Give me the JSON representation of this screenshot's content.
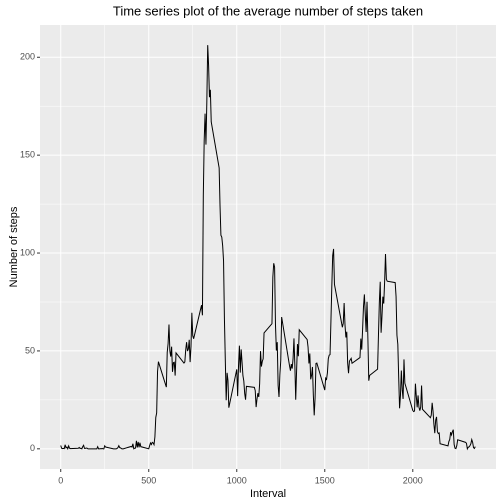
{
  "chart_data": {
    "type": "line",
    "title": "Time series plot of the average number of steps taken",
    "x_label": "Interval",
    "y_label": "Number of steps",
    "x": [
      0,
      5,
      10,
      15,
      20,
      25,
      30,
      35,
      40,
      45,
      50,
      55,
      100,
      105,
      110,
      115,
      120,
      125,
      130,
      135,
      140,
      145,
      150,
      155,
      200,
      205,
      210,
      215,
      220,
      225,
      230,
      235,
      240,
      245,
      250,
      255,
      300,
      305,
      310,
      315,
      320,
      325,
      330,
      335,
      340,
      345,
      350,
      355,
      400,
      405,
      410,
      415,
      420,
      425,
      430,
      435,
      440,
      445,
      450,
      455,
      500,
      505,
      510,
      515,
      520,
      525,
      530,
      535,
      540,
      545,
      550,
      555,
      600,
      605,
      610,
      615,
      620,
      625,
      630,
      635,
      640,
      645,
      650,
      655,
      700,
      705,
      710,
      715,
      720,
      725,
      730,
      735,
      740,
      745,
      750,
      755,
      800,
      805,
      810,
      815,
      820,
      825,
      830,
      835,
      840,
      845,
      850,
      855,
      900,
      905,
      910,
      915,
      920,
      925,
      930,
      935,
      940,
      945,
      950,
      955,
      1000,
      1005,
      1010,
      1015,
      1020,
      1025,
      1030,
      1035,
      1040,
      1045,
      1050,
      1055,
      1100,
      1105,
      1110,
      1115,
      1120,
      1125,
      1130,
      1135,
      1140,
      1145,
      1150,
      1155,
      1200,
      1205,
      1210,
      1215,
      1220,
      1225,
      1230,
      1235,
      1240,
      1245,
      1250,
      1255,
      1300,
      1305,
      1310,
      1315,
      1320,
      1325,
      1330,
      1335,
      1340,
      1345,
      1350,
      1355,
      1400,
      1405,
      1410,
      1415,
      1420,
      1425,
      1430,
      1435,
      1440,
      1445,
      1450,
      1455,
      1500,
      1505,
      1510,
      1515,
      1520,
      1525,
      1530,
      1535,
      1540,
      1545,
      1550,
      1555,
      1600,
      1605,
      1610,
      1615,
      1620,
      1625,
      1630,
      1635,
      1640,
      1645,
      1650,
      1655,
      1700,
      1705,
      1710,
      1715,
      1720,
      1725,
      1730,
      1735,
      1740,
      1745,
      1750,
      1755,
      1800,
      1805,
      1810,
      1815,
      1820,
      1825,
      1830,
      1835,
      1840,
      1845,
      1850,
      1855,
      1900,
      1905,
      1910,
      1915,
      1920,
      1925,
      1930,
      1935,
      1940,
      1945,
      1950,
      1955,
      2000,
      2005,
      2010,
      2015,
      2020,
      2025,
      2030,
      2035,
      2040,
      2045,
      2050,
      2055,
      2100,
      2105,
      2110,
      2115,
      2120,
      2125,
      2130,
      2135,
      2140,
      2145,
      2150,
      2155,
      2200,
      2205,
      2210,
      2215,
      2220,
      2225,
      2230,
      2235,
      2240,
      2245,
      2250,
      2255,
      2300,
      2305,
      2310,
      2315,
      2320,
      2325,
      2330,
      2335,
      2340,
      2345,
      2350,
      2355
    ],
    "values": [
      1.7,
      0.3,
      0.1,
      0.2,
      0.1,
      2.1,
      0.5,
      0.9,
      0,
      1.5,
      0.3,
      0.1,
      0.3,
      0.7,
      0.2,
      0.3,
      0,
      1.1,
      1.8,
      0.2,
      0.2,
      0.4,
      0.3,
      0,
      0,
      0,
      1.1,
      0,
      0,
      0.1,
      0,
      0.2,
      0,
      0,
      1.5,
      0.9,
      0,
      0,
      0,
      0,
      0.2,
      0.6,
      1.6,
      0.6,
      0.5,
      0.1,
      0,
      0,
      1.2,
      0.9,
      2.6,
      0,
      0.3,
      0.4,
      4.1,
      0.7,
      3.5,
      0.8,
      3.1,
      1.1,
      0,
      1.6,
      3,
      2.2,
      3.3,
      3,
      2.1,
      6.1,
      16,
      18.3,
      39.5,
      44.5,
      31.5,
      49.3,
      53.8,
      63.5,
      50,
      47.1,
      52.2,
      39.3,
      44,
      44.2,
      37.4,
      49,
      43.8,
      44.4,
      50.5,
      54.5,
      49.9,
      51,
      55.7,
      44.3,
      52.3,
      69.5,
      57.8,
      56.2,
      73.4,
      68.2,
      129.4,
      157.5,
      171.2,
      155.4,
      177.3,
      206.2,
      195.9,
      179.6,
      183.4,
      167,
      143.5,
      124,
      109.1,
      108.1,
      103.7,
      96,
      66.2,
      45.2,
      24.8,
      38.8,
      35,
      21,
      40.6,
      26.9,
      42.4,
      52.7,
      38.9,
      50.8,
      44.3,
      37.4,
      34.7,
      28.3,
      25.1,
      31.9,
      31.4,
      29.7,
      21.3,
      25.5,
      28.4,
      26.5,
      33.3,
      49.9,
      42,
      44.6,
      46,
      59.2,
      63.9,
      87.7,
      94.8,
      92.8,
      63.4,
      50.2,
      54.5,
      32.4,
      26.5,
      37.7,
      45.1,
      67.3,
      42.3,
      39.9,
      43.3,
      41,
      46.2,
      56.4,
      42.8,
      25.1,
      40,
      53.5,
      47.3,
      60.8,
      55.8,
      52,
      43.6,
      48.7,
      35.5,
      37.5,
      41.8,
      27.5,
      17.1,
      26.1,
      43.6,
      43.8,
      30,
      36.1,
      35.5,
      38.8,
      46,
      47.8,
      48.1,
      65.3,
      82.9,
      98.7,
      102.1,
      84,
      62.1,
      64.1,
      74.5,
      63.2,
      56.9,
      59.8,
      43.9,
      38.6,
      44.7,
      45.5,
      46.2,
      43.7,
      46.6,
      56.3,
      50.7,
      61.2,
      72.7,
      78.9,
      68.9,
      59.7,
      75.1,
      56.5,
      34.8,
      37.5,
      40.7,
      58,
      74.7,
      85.3,
      59.3,
      67.8,
      77.7,
      74.2,
      85.3,
      99.5,
      86.6,
      85.6,
      84.9,
      77.8,
      58,
      53.4,
      36.3,
      20.7,
      27.4,
      40,
      30.2,
      25.5,
      45.7,
      33.5,
      19.6,
      19,
      19.3,
      33.3,
      26.8,
      21.2,
      27.3,
      21.3,
      19.5,
      21.3,
      32.3,
      20.2,
      15.9,
      17.2,
      23.5,
      19.2,
      12.5,
      8,
      14.7,
      16.3,
      8.7,
      7.8,
      8.1,
      2.6,
      1.5,
      3.7,
      4.8,
      8.5,
      7.1,
      8.7,
      9.8,
      2.2,
      0.3,
      0.1,
      1.6,
      4.6,
      3.3,
      2.8,
      0,
      0.8,
      1,
      1.6,
      2.6,
      4.7,
      3.3,
      0.6,
      0.2,
      1.1
    ],
    "color": "#000000",
    "xlim": [
      -117.75,
      2472.75
    ],
    "xticks": [
      0,
      500,
      1000,
      1500,
      2000
    ],
    "x_minor_grid": [
      250,
      750,
      1250,
      1750,
      2250
    ],
    "ylim": [
      -10.31,
      216.48
    ],
    "yticks": [
      0,
      50,
      100,
      150,
      200
    ],
    "y_minor_grid": [
      25,
      75,
      125,
      175
    ],
    "grid": true
  }
}
